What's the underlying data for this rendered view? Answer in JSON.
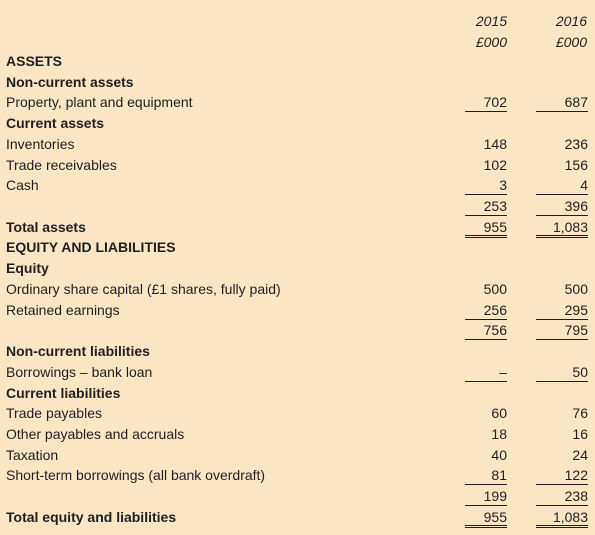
{
  "header": {
    "col1_year": "2015",
    "col1_unit": "£000",
    "col2_year": "2016",
    "col2_unit": "£000"
  },
  "rows": [
    {
      "label": "ASSETS",
      "bold": true,
      "v1": "",
      "v2": ""
    },
    {
      "label": "Non-current assets",
      "bold": true,
      "v1": "",
      "v2": ""
    },
    {
      "label": "Property, plant and equipment",
      "bold": false,
      "v1": "702",
      "v2": "687"
    },
    {
      "label": "Current assets",
      "bold": true,
      "v1": "",
      "v2": ""
    },
    {
      "label": "Inventories",
      "bold": false,
      "v1": "148",
      "v2": "236"
    },
    {
      "label": "Trade receivables",
      "bold": false,
      "v1": "102",
      "v2": "156"
    },
    {
      "label": "Cash",
      "bold": false,
      "v1": "3",
      "v2": "4"
    },
    {
      "label": "",
      "bold": false,
      "v1": "253",
      "v2": "396"
    },
    {
      "label": "Total assets",
      "bold": true,
      "v1": "955",
      "v2": "1,083"
    },
    {
      "label": "EQUITY AND LIABILITIES",
      "bold": true,
      "v1": "",
      "v2": ""
    },
    {
      "label": "Equity",
      "bold": true,
      "v1": "",
      "v2": ""
    },
    {
      "label": "Ordinary share capital (£1 shares, fully paid)",
      "bold": false,
      "v1": "500",
      "v2": "500"
    },
    {
      "label": "Retained earnings",
      "bold": false,
      "v1": "256",
      "v2": "295"
    },
    {
      "label": "",
      "bold": false,
      "v1": "756",
      "v2": "795"
    },
    {
      "label": "",
      "bold": false,
      "v1": "",
      "v2": ""
    },
    {
      "label": "Non-current liabilities",
      "bold": true,
      "v1": "",
      "v2": ""
    },
    {
      "label": "Borrowings – bank loan",
      "bold": false,
      "v1": "–",
      "v2": "50"
    },
    {
      "label": "Current liabilities",
      "bold": true,
      "v1": "",
      "v2": ""
    },
    {
      "label": "Trade payables",
      "bold": false,
      "v1": "60",
      "v2": "76"
    },
    {
      "label": "Other payables and accruals",
      "bold": false,
      "v1": "18",
      "v2": "16"
    },
    {
      "label": "Taxation",
      "bold": false,
      "v1": "40",
      "v2": "24"
    },
    {
      "label": "Short-term borrowings (all bank overdraft)",
      "bold": false,
      "v1": "81",
      "v2": "122"
    },
    {
      "label": "",
      "bold": false,
      "v1": "199",
      "v2": "238"
    },
    {
      "label": "Total equity and liabilities",
      "bold": true,
      "v1": "955",
      "v2": "1,083"
    }
  ]
}
